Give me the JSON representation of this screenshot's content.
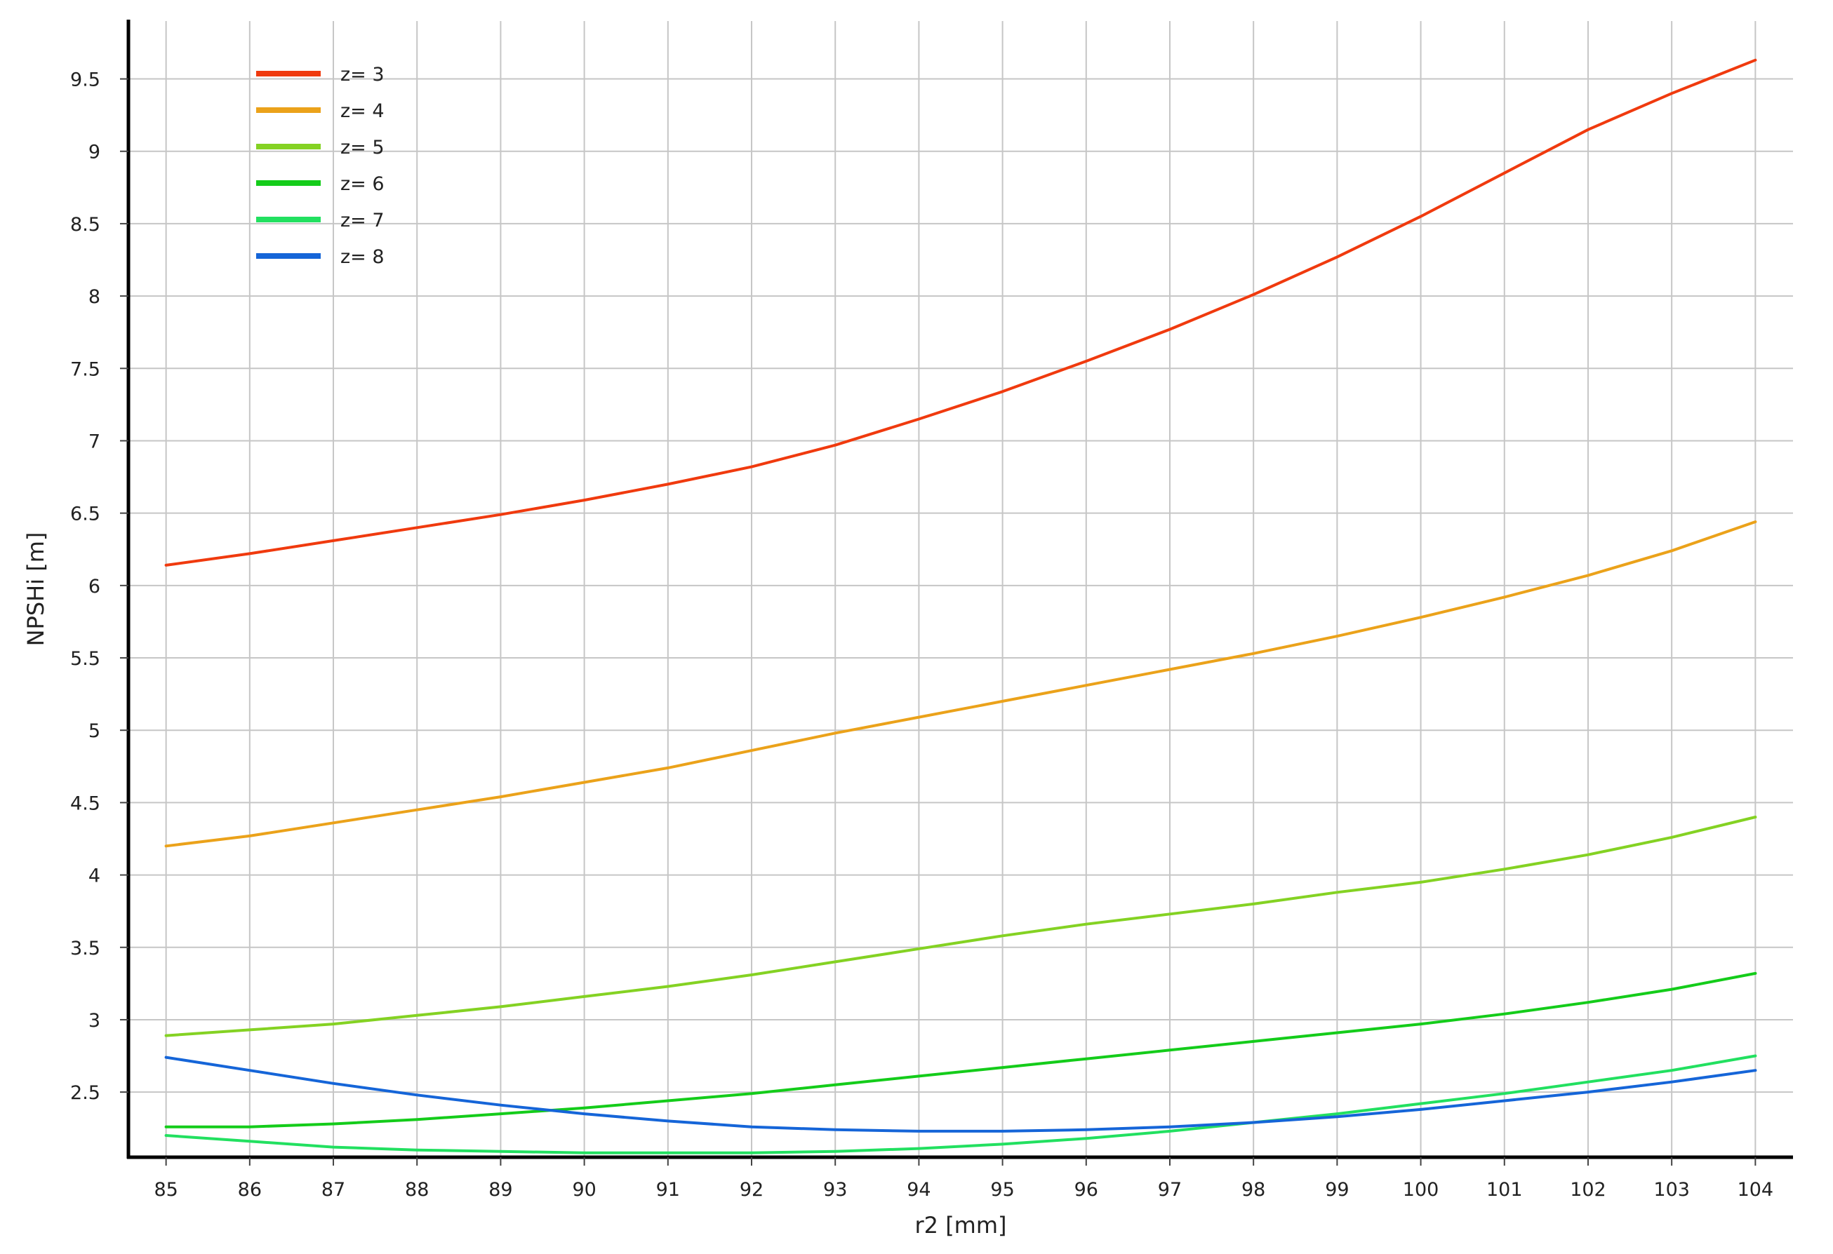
{
  "chart_data": {
    "type": "line",
    "title": "",
    "xlabel": "r2  [mm]",
    "ylabel": "NPSHi  [m]",
    "xlim": [
      84.55,
      104.45
    ],
    "ylim": [
      2.05,
      9.9
    ],
    "grid": true,
    "legend_position": "top-left",
    "x_ticks": [
      85,
      86,
      87,
      88,
      89,
      90,
      91,
      92,
      93,
      94,
      95,
      96,
      97,
      98,
      99,
      100,
      101,
      102,
      103,
      104
    ],
    "x_tick_labels": [
      "85",
      "86",
      "87",
      "88",
      "89",
      "90",
      "91",
      "92",
      "93",
      "94",
      "95",
      "96",
      "97",
      "98",
      "99",
      "100",
      "101",
      "102",
      "103",
      "104"
    ],
    "y_ticks": [
      2.5,
      3,
      3.5,
      4,
      4.5,
      5,
      5.5,
      6,
      6.5,
      7,
      7.5,
      8,
      8.5,
      9,
      9.5
    ],
    "y_tick_labels": [
      "2.5",
      "3",
      "3.5",
      "4",
      "4.5",
      "5",
      "5.5",
      "6",
      "6.5",
      "7",
      "7.5",
      "8",
      "8.5",
      "9",
      "9.5"
    ],
    "x": [
      85,
      86,
      87,
      88,
      89,
      90,
      91,
      92,
      93,
      94,
      95,
      96,
      97,
      98,
      99,
      100,
      101,
      102,
      103,
      104
    ],
    "series": [
      {
        "name": "z= 3",
        "color": "#f03a0e",
        "values": [
          6.14,
          6.22,
          6.31,
          6.4,
          6.49,
          6.59,
          6.7,
          6.82,
          6.97,
          7.15,
          7.34,
          7.55,
          7.77,
          8.01,
          8.27,
          8.55,
          8.85,
          9.15,
          9.4,
          9.63
        ]
      },
      {
        "name": "z= 4",
        "color": "#eba21a",
        "values": [
          4.2,
          4.27,
          4.36,
          4.45,
          4.54,
          4.64,
          4.74,
          4.86,
          4.98,
          5.09,
          5.2,
          5.31,
          5.42,
          5.53,
          5.65,
          5.78,
          5.92,
          6.07,
          6.24,
          6.44
        ]
      },
      {
        "name": "z= 5",
        "color": "#84d223",
        "values": [
          2.89,
          2.93,
          2.97,
          3.03,
          3.09,
          3.16,
          3.23,
          3.31,
          3.4,
          3.49,
          3.58,
          3.66,
          3.73,
          3.8,
          3.88,
          3.95,
          4.04,
          4.14,
          4.26,
          4.4
        ]
      },
      {
        "name": "z= 6",
        "color": "#14cc1a",
        "values": [
          2.26,
          2.26,
          2.28,
          2.31,
          2.35,
          2.39,
          2.44,
          2.49,
          2.55,
          2.61,
          2.67,
          2.73,
          2.79,
          2.85,
          2.91,
          2.97,
          3.04,
          3.12,
          3.21,
          3.32
        ]
      },
      {
        "name": "z= 7",
        "color": "#22e060",
        "values": [
          2.2,
          2.16,
          2.12,
          2.1,
          2.09,
          2.08,
          2.08,
          2.08,
          2.09,
          2.11,
          2.14,
          2.18,
          2.23,
          2.29,
          2.35,
          2.42,
          2.49,
          2.57,
          2.65,
          2.75
        ]
      },
      {
        "name": "z= 8",
        "color": "#1565d8",
        "values": [
          2.74,
          2.65,
          2.56,
          2.48,
          2.41,
          2.35,
          2.3,
          2.26,
          2.24,
          2.23,
          2.23,
          2.24,
          2.26,
          2.29,
          2.33,
          2.38,
          2.44,
          2.5,
          2.57,
          2.65
        ]
      }
    ]
  }
}
